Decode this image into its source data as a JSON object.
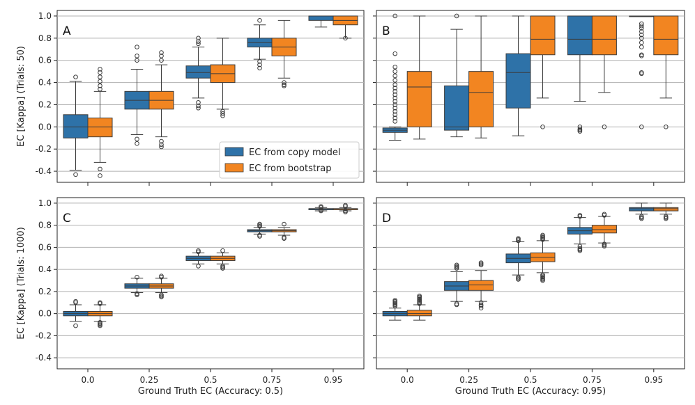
{
  "chart_data": {
    "type": "box",
    "categories": [
      "0.0",
      "0.25",
      "0.5",
      "0.75",
      "0.95"
    ],
    "yticks": [
      "-0.4",
      "-0.2",
      "0.0",
      "0.2",
      "0.4",
      "0.6",
      "0.8",
      "1.0"
    ],
    "ylim": [
      -0.5,
      1.05
    ],
    "legend": {
      "placement": "lower-right of panel A",
      "items": [
        {
          "label": "EC from copy model",
          "color": "#2e72a8"
        },
        {
          "label": "EC from bootstrap",
          "color": "#f28521"
        }
      ]
    },
    "colors": {
      "copy": "#2e72a8",
      "boot": "#f28521",
      "grid": "#b0b0b0"
    },
    "ylabels": [
      "EC [Kappa] (Trials: 50)",
      "EC [Kappa] (Trials: 1000)"
    ],
    "xlabels": [
      "Ground Truth EC (Accuracy: 0.5)",
      "Ground Truth EC (Accuracy: 0.95)"
    ],
    "panels": [
      {
        "letter": "A",
        "series": [
          {
            "name": "EC from copy model",
            "boxes": [
              {
                "q1": -0.1,
                "median": 0.0,
                "q3": 0.11,
                "whislo": -0.39,
                "whishi": 0.41,
                "fliers": [
                  0.45,
                  -0.43
                ]
              },
              {
                "q1": 0.16,
                "median": 0.24,
                "q3": 0.32,
                "whislo": -0.07,
                "whishi": 0.52,
                "fliers": [
                  0.72,
                  0.64,
                  0.6,
                  -0.11,
                  -0.15
                ]
              },
              {
                "q1": 0.44,
                "median": 0.49,
                "q3": 0.55,
                "whislo": 0.26,
                "whishi": 0.72,
                "fliers": [
                  0.8,
                  0.77,
                  0.75,
                  0.22,
                  0.19,
                  0.17
                ]
              },
              {
                "q1": 0.72,
                "median": 0.76,
                "q3": 0.8,
                "whislo": 0.61,
                "whishi": 0.92,
                "fliers": [
                  0.96,
                  0.59,
                  0.56,
                  0.53
                ]
              },
              {
                "q1": 0.96,
                "median": 1.0,
                "q3": 1.0,
                "whislo": 0.9,
                "whishi": 1.0,
                "fliers": []
              }
            ]
          },
          {
            "name": "EC from bootstrap",
            "boxes": [
              {
                "q1": -0.09,
                "median": 0.0,
                "q3": 0.08,
                "whislo": -0.32,
                "whishi": 0.32,
                "fliers": [
                  0.52,
                  0.49,
                  0.45,
                  0.41,
                  0.37,
                  0.34,
                  -0.38,
                  -0.44
                ]
              },
              {
                "q1": 0.16,
                "median": 0.24,
                "q3": 0.32,
                "whislo": -0.09,
                "whishi": 0.56,
                "fliers": [
                  0.67,
                  0.64,
                  0.6,
                  -0.13,
                  -0.16,
                  -0.18
                ]
              },
              {
                "q1": 0.4,
                "median": 0.48,
                "q3": 0.56,
                "whislo": 0.16,
                "whishi": 0.8,
                "fliers": [
                  0.14,
                  0.12,
                  0.1
                ]
              },
              {
                "q1": 0.64,
                "median": 0.72,
                "q3": 0.8,
                "whislo": 0.44,
                "whishi": 0.96,
                "fliers": [
                  0.4,
                  0.38,
                  0.37
                ]
              },
              {
                "q1": 0.92,
                "median": 0.96,
                "q3": 1.0,
                "whislo": 0.8,
                "whishi": 1.0,
                "fliers": [
                  0.8
                ]
              }
            ]
          }
        ]
      },
      {
        "letter": "B",
        "series": [
          {
            "name": "EC from copy model",
            "boxes": [
              {
                "q1": -0.05,
                "median": -0.03,
                "q3": -0.01,
                "whislo": -0.12,
                "whishi": 0.0,
                "fliers": [
                  1.0,
                  0.66,
                  0.54,
                  0.5,
                  0.46,
                  0.42,
                  0.38,
                  0.35,
                  0.32,
                  0.29,
                  0.26,
                  0.23,
                  0.2,
                  0.17,
                  0.14,
                  0.11,
                  0.08,
                  0.05
                ]
              },
              {
                "q1": -0.03,
                "median": 0.0,
                "q3": 0.37,
                "whislo": -0.09,
                "whishi": 0.88,
                "fliers": [
                  1.0
                ]
              },
              {
                "q1": 0.17,
                "median": 0.49,
                "q3": 0.66,
                "whislo": -0.08,
                "whishi": 1.0,
                "fliers": []
              },
              {
                "q1": 0.65,
                "median": 0.79,
                "q3": 1.0,
                "whislo": 0.23,
                "whishi": 1.0,
                "fliers": [
                  0.0,
                  -0.02,
                  -0.03,
                  -0.04
                ]
              },
              {
                "q1": 1.0,
                "median": 1.0,
                "q3": 1.0,
                "whislo": 1.0,
                "whishi": 1.0,
                "fliers": [
                  0.93,
                  0.91,
                  0.89,
                  0.86,
                  0.83,
                  0.8,
                  0.76,
                  0.72,
                  0.65,
                  0.64,
                  0.49,
                  0.48,
                  0.0
                ]
              }
            ]
          },
          {
            "name": "EC from bootstrap",
            "boxes": [
              {
                "q1": 0.0,
                "median": 0.36,
                "q3": 0.5,
                "whislo": -0.11,
                "whishi": 1.0,
                "fliers": []
              },
              {
                "q1": 0.0,
                "median": 0.31,
                "q3": 0.5,
                "whislo": -0.1,
                "whishi": 1.0,
                "fliers": []
              },
              {
                "q1": 0.65,
                "median": 0.79,
                "q3": 1.0,
                "whislo": 0.26,
                "whishi": 1.0,
                "fliers": [
                  0.0
                ]
              },
              {
                "q1": 0.65,
                "median": 0.79,
                "q3": 1.0,
                "whislo": 0.31,
                "whishi": 1.0,
                "fliers": [
                  0.0
                ]
              },
              {
                "q1": 0.65,
                "median": 0.79,
                "q3": 1.0,
                "whislo": 0.26,
                "whishi": 1.0,
                "fliers": [
                  0.0
                ]
              }
            ]
          }
        ]
      },
      {
        "letter": "C",
        "series": [
          {
            "name": "EC from copy model",
            "boxes": [
              {
                "q1": -0.02,
                "median": 0.0,
                "q3": 0.02,
                "whislo": -0.07,
                "whishi": 0.08,
                "fliers": [
                  0.11,
                  0.1,
                  -0.11
                ]
              },
              {
                "q1": 0.23,
                "median": 0.25,
                "q3": 0.27,
                "whislo": 0.19,
                "whishi": 0.32,
                "fliers": [
                  0.33,
                  0.18,
                  0.17
                ]
              },
              {
                "q1": 0.48,
                "median": 0.5,
                "q3": 0.52,
                "whislo": 0.45,
                "whishi": 0.55,
                "fliers": [
                  0.57,
                  0.56,
                  0.43
                ]
              },
              {
                "q1": 0.74,
                "median": 0.75,
                "q3": 0.76,
                "whislo": 0.72,
                "whishi": 0.78,
                "fliers": [
                  0.81,
                  0.8,
                  0.79,
                  0.71,
                  0.7
                ]
              },
              {
                "q1": 0.94,
                "median": 0.95,
                "q3": 0.95,
                "whislo": 0.93,
                "whishi": 0.96,
                "fliers": [
                  0.97,
                  0.96,
                  0.94,
                  0.93
                ]
              }
            ]
          },
          {
            "name": "EC from bootstrap",
            "boxes": [
              {
                "q1": -0.02,
                "median": 0.0,
                "q3": 0.02,
                "whislo": -0.07,
                "whishi": 0.08,
                "fliers": [
                  0.1,
                  0.09,
                  -0.08,
                  -0.09,
                  -0.1,
                  -0.11
                ]
              },
              {
                "q1": 0.23,
                "median": 0.25,
                "q3": 0.27,
                "whislo": 0.19,
                "whishi": 0.32,
                "fliers": [
                  0.34,
                  0.33,
                  0.17,
                  0.16,
                  0.15
                ]
              },
              {
                "q1": 0.48,
                "median": 0.5,
                "q3": 0.52,
                "whislo": 0.45,
                "whishi": 0.55,
                "fliers": [
                  0.57,
                  0.43,
                  0.42,
                  0.41
                ]
              },
              {
                "q1": 0.74,
                "median": 0.75,
                "q3": 0.76,
                "whislo": 0.71,
                "whishi": 0.78,
                "fliers": [
                  0.81,
                  0.69,
                  0.68
                ]
              },
              {
                "q1": 0.94,
                "median": 0.95,
                "q3": 0.95,
                "whislo": 0.93,
                "whishi": 0.96,
                "fliers": [
                  0.98,
                  0.97,
                  0.93,
                  0.92
                ]
              }
            ]
          }
        ]
      },
      {
        "letter": "D",
        "series": [
          {
            "name": "EC from copy model",
            "boxes": [
              {
                "q1": -0.02,
                "median": 0.0,
                "q3": 0.02,
                "whislo": -0.06,
                "whishi": 0.05,
                "fliers": [
                  0.12,
                  0.11,
                  0.1,
                  0.09,
                  0.08,
                  0.07
                ]
              },
              {
                "q1": 0.21,
                "median": 0.25,
                "q3": 0.29,
                "whislo": 0.11,
                "whishi": 0.38,
                "fliers": [
                  0.44,
                  0.43,
                  0.42,
                  0.41,
                  0.09,
                  0.08
                ]
              },
              {
                "q1": 0.46,
                "median": 0.5,
                "q3": 0.54,
                "whislo": 0.35,
                "whishi": 0.65,
                "fliers": [
                  0.68,
                  0.67,
                  0.66,
                  0.33,
                  0.32,
                  0.31
                ]
              },
              {
                "q1": 0.72,
                "median": 0.75,
                "q3": 0.78,
                "whislo": 0.63,
                "whishi": 0.87,
                "fliers": [
                  0.89,
                  0.88,
                  0.61,
                  0.59,
                  0.58,
                  0.57
                ]
              },
              {
                "q1": 0.93,
                "median": 0.95,
                "q3": 0.96,
                "whislo": 0.9,
                "whishi": 1.0,
                "fliers": [
                  0.88,
                  0.87,
                  0.86
                ]
              }
            ]
          },
          {
            "name": "EC from bootstrap",
            "boxes": [
              {
                "q1": -0.02,
                "median": 0.0,
                "q3": 0.03,
                "whislo": -0.06,
                "whishi": 0.08,
                "fliers": [
                  0.16,
                  0.15,
                  0.14,
                  0.13,
                  0.12,
                  0.11,
                  0.1,
                  0.09
                ]
              },
              {
                "q1": 0.21,
                "median": 0.26,
                "q3": 0.3,
                "whislo": 0.11,
                "whishi": 0.39,
                "fliers": [
                  0.46,
                  0.45,
                  0.44,
                  0.1,
                  0.08,
                  0.07,
                  0.05
                ]
              },
              {
                "q1": 0.47,
                "median": 0.51,
                "q3": 0.55,
                "whislo": 0.37,
                "whishi": 0.66,
                "fliers": [
                  0.71,
                  0.7,
                  0.69,
                  0.68,
                  0.67,
                  0.35,
                  0.34,
                  0.33,
                  0.32,
                  0.31,
                  0.3
                ]
              },
              {
                "q1": 0.73,
                "median": 0.76,
                "q3": 0.8,
                "whislo": 0.64,
                "whishi": 0.88,
                "fliers": [
                  0.9,
                  0.89,
                  0.63,
                  0.62,
                  0.61
                ]
              },
              {
                "q1": 0.93,
                "median": 0.95,
                "q3": 0.96,
                "whislo": 0.9,
                "whishi": 1.0,
                "fliers": [
                  0.88,
                  0.87,
                  0.86
                ]
              }
            ]
          }
        ]
      }
    ]
  }
}
